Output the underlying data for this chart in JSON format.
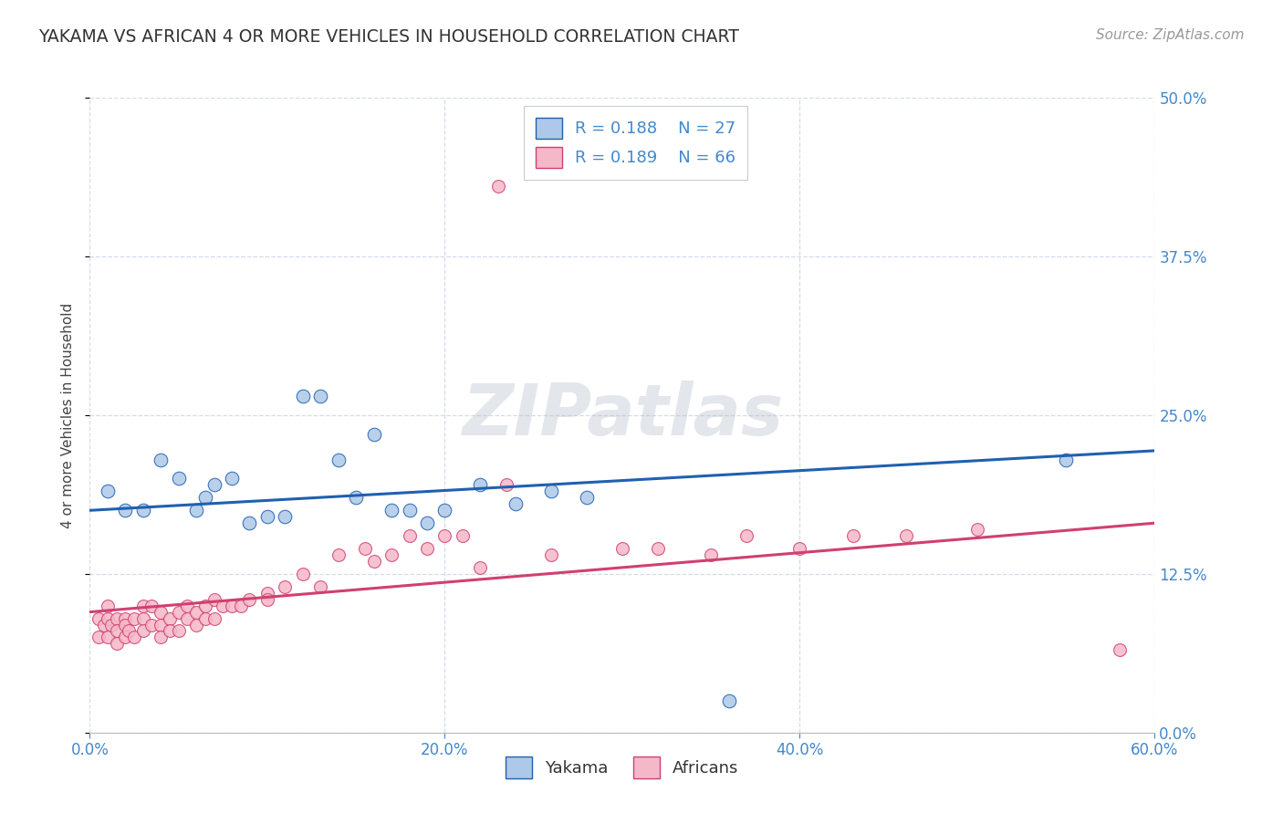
{
  "title": "YAKAMA VS AFRICAN 4 OR MORE VEHICLES IN HOUSEHOLD CORRELATION CHART",
  "source": "Source: ZipAtlas.com",
  "ylabel": "4 or more Vehicles in Household",
  "xlim": [
    0.0,
    0.6
  ],
  "ylim": [
    0.0,
    0.5
  ],
  "xtick_labels": [
    "0.0%",
    "20.0%",
    "40.0%",
    "60.0%"
  ],
  "xtick_vals": [
    0.0,
    0.2,
    0.4,
    0.6
  ],
  "ytick_labels": [
    "0.0%",
    "12.5%",
    "25.0%",
    "37.5%",
    "50.0%"
  ],
  "ytick_vals": [
    0.0,
    0.125,
    0.25,
    0.375,
    0.5
  ],
  "yakama_color": "#adc8e8",
  "african_color": "#f5b8c8",
  "yakama_line_color": "#2060b0",
  "african_line_color": "#d04070",
  "background_color": "#ffffff",
  "grid_color": "#d0d8e8",
  "legend_label_color": "#4488cc",
  "watermark": "ZIPatlas",
  "legend_r_yakama": "R = 0.188",
  "legend_n_yakama": "N = 27",
  "legend_r_african": "R = 0.189",
  "legend_n_african": "N = 66",
  "yakama_line": [
    0.0,
    0.175,
    0.6,
    0.222
  ],
  "african_line": [
    0.0,
    0.095,
    0.6,
    0.165
  ],
  "yakama_x": [
    0.01,
    0.02,
    0.03,
    0.04,
    0.05,
    0.06,
    0.065,
    0.07,
    0.08,
    0.09,
    0.1,
    0.11,
    0.12,
    0.13,
    0.14,
    0.15,
    0.16,
    0.17,
    0.18,
    0.19,
    0.2,
    0.22,
    0.24,
    0.26,
    0.28,
    0.36,
    0.55
  ],
  "yakama_y": [
    0.19,
    0.175,
    0.175,
    0.215,
    0.2,
    0.175,
    0.185,
    0.195,
    0.2,
    0.165,
    0.17,
    0.17,
    0.265,
    0.265,
    0.215,
    0.185,
    0.235,
    0.175,
    0.175,
    0.165,
    0.175,
    0.195,
    0.18,
    0.19,
    0.185,
    0.025,
    0.215
  ],
  "african_x": [
    0.005,
    0.005,
    0.008,
    0.01,
    0.01,
    0.01,
    0.012,
    0.015,
    0.015,
    0.015,
    0.02,
    0.02,
    0.02,
    0.022,
    0.025,
    0.025,
    0.03,
    0.03,
    0.03,
    0.035,
    0.035,
    0.04,
    0.04,
    0.04,
    0.045,
    0.045,
    0.05,
    0.05,
    0.055,
    0.055,
    0.06,
    0.06,
    0.065,
    0.065,
    0.07,
    0.07,
    0.075,
    0.08,
    0.085,
    0.09,
    0.1,
    0.1,
    0.11,
    0.12,
    0.13,
    0.14,
    0.155,
    0.16,
    0.17,
    0.18,
    0.19,
    0.2,
    0.21,
    0.22,
    0.235,
    0.26,
    0.3,
    0.32,
    0.35,
    0.37,
    0.4,
    0.43,
    0.46,
    0.5,
    0.58,
    0.23
  ],
  "african_y": [
    0.09,
    0.075,
    0.085,
    0.1,
    0.09,
    0.075,
    0.085,
    0.09,
    0.08,
    0.07,
    0.09,
    0.085,
    0.075,
    0.08,
    0.09,
    0.075,
    0.1,
    0.09,
    0.08,
    0.1,
    0.085,
    0.095,
    0.085,
    0.075,
    0.09,
    0.08,
    0.095,
    0.08,
    0.1,
    0.09,
    0.095,
    0.085,
    0.1,
    0.09,
    0.105,
    0.09,
    0.1,
    0.1,
    0.1,
    0.105,
    0.11,
    0.105,
    0.115,
    0.125,
    0.115,
    0.14,
    0.145,
    0.135,
    0.14,
    0.155,
    0.145,
    0.155,
    0.155,
    0.13,
    0.195,
    0.14,
    0.145,
    0.145,
    0.14,
    0.155,
    0.145,
    0.155,
    0.155,
    0.16,
    0.065,
    0.43
  ]
}
